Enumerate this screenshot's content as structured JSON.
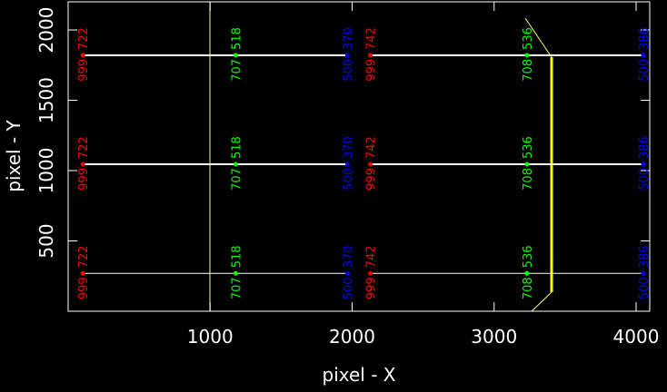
{
  "chart_data": {
    "type": "scatter",
    "xlabel": "pixel - X",
    "ylabel": "pixel - Y",
    "xlim": [
      0,
      4096
    ],
    "ylim": [
      0,
      2200
    ],
    "xticks": [
      1000,
      2000,
      3000,
      4000
    ],
    "yticks": [
      500,
      1000,
      1500,
      2000
    ],
    "series": [
      {
        "color": "#ff0000",
        "x": [
          103,
          103,
          103
        ],
        "values": [
          1820,
          1045,
          269
        ],
        "labels": [
          "999",
          "722"
        ]
      },
      {
        "color": "#00ff00",
        "x": [
          1180,
          1180,
          1180
        ],
        "values": [
          1820,
          1045,
          269
        ],
        "labels": [
          "707",
          "518"
        ]
      },
      {
        "color": "#0000ff",
        "x": [
          1968,
          1968,
          1968
        ],
        "values": [
          1820,
          1045,
          269
        ],
        "labels": [
          "500",
          "370"
        ]
      },
      {
        "color": "#ff0000",
        "x": [
          2128,
          2128,
          2128
        ],
        "values": [
          1820,
          1045,
          269
        ],
        "labels": [
          "999",
          "742"
        ]
      },
      {
        "color": "#00ff00",
        "x": [
          3231,
          3231,
          3231
        ],
        "values": [
          1820,
          1045,
          269
        ],
        "labels": [
          "708",
          "536"
        ]
      },
      {
        "color": "#0000ff",
        "x": [
          4051,
          4051,
          4051
        ],
        "values": [
          1820,
          1045,
          269
        ],
        "labels": [
          "500",
          "386"
        ]
      }
    ]
  }
}
